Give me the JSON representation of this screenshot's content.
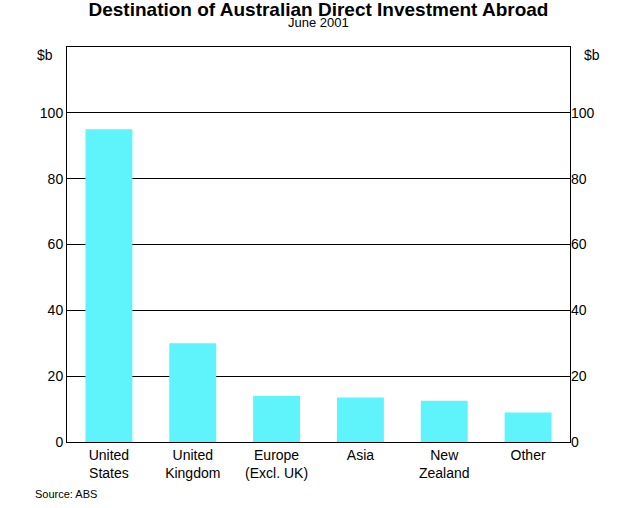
{
  "chart_data": {
    "type": "bar",
    "title": "Destination of Australian Direct Investment Abroad",
    "subtitle": "June 2001",
    "ylabel": "$b",
    "y2label": "$b",
    "source": "Source: ABS",
    "categories": [
      "United States",
      "United Kingdom",
      "Europe (Excl. UK)",
      "Asia",
      "New Zealand",
      "Other"
    ],
    "values": [
      95,
      30,
      14,
      13.5,
      12.5,
      9
    ],
    "color": "#5ff4fb",
    "ylim": [
      0,
      120
    ],
    "yticks": [
      0,
      20,
      40,
      60,
      80,
      100
    ],
    "y2lim": [
      0,
      120
    ],
    "y2ticks": [
      0,
      20,
      40,
      60,
      80,
      100
    ],
    "grid": true
  }
}
